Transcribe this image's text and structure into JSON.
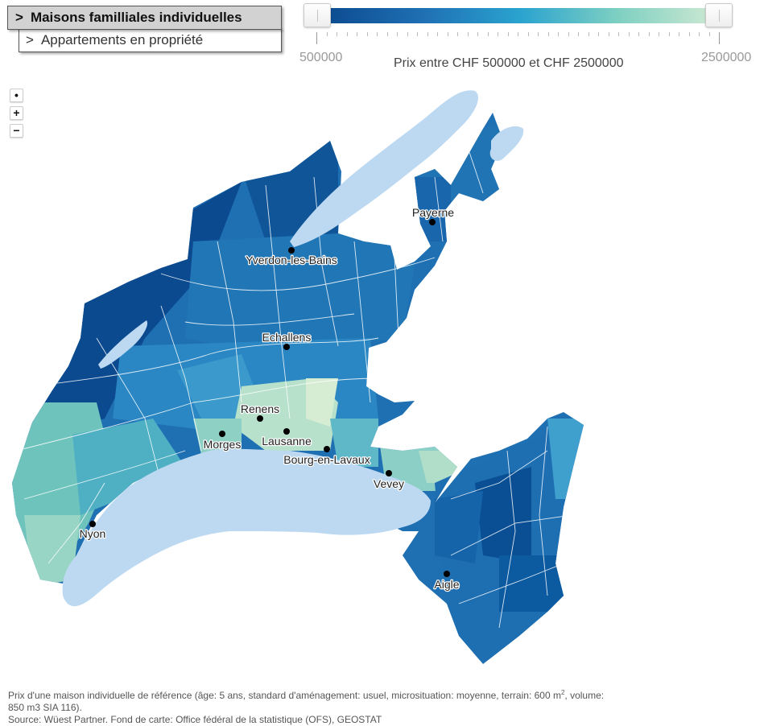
{
  "property_types": {
    "active_label": "Maisons familliales individuelles",
    "inactive_label": "Appartements en propriété",
    "chevron": ">"
  },
  "price_slider": {
    "min_label": "500000",
    "max_label": "2500000",
    "title": "Prix entre CHF 500000 et CHF 2500000",
    "min_value": 500000,
    "max_value": 2500000,
    "gradient_colors": [
      "#0c4a8f",
      "#1f6fb3",
      "#2aa3cf",
      "#7fd0c2",
      "#cfe9d3"
    ]
  },
  "zoom_controls": {
    "reset": "•",
    "zoom_in": "+",
    "zoom_out": "−"
  },
  "map": {
    "lake_color": "#bdd9f2",
    "cities": {
      "payerne": "Payerne",
      "yverdon": "Yverdon-les-Bains",
      "echallens": "Echallens",
      "renens": "Renens",
      "morges": "Morges",
      "lausanne": "Lausanne",
      "bourg": "Bourg-en-Lavaux",
      "vevey": "Vevey",
      "nyon": "Nyon",
      "aigle": "Aigle"
    }
  },
  "footnote": {
    "line1_a": "Prix d'une maison individuelle de référence (âge: 5 ans, standard d'aménagement: usuel, microsituation: moyenne, terrain: 600 m",
    "line1_sup": "2",
    "line1_b": ", volume:",
    "line2": "850 m3 SIA 116).",
    "line3": "Source: Wüest Partner. Fond de carte: Office fédéral de la statistique (OFS), GEOSTAT"
  }
}
